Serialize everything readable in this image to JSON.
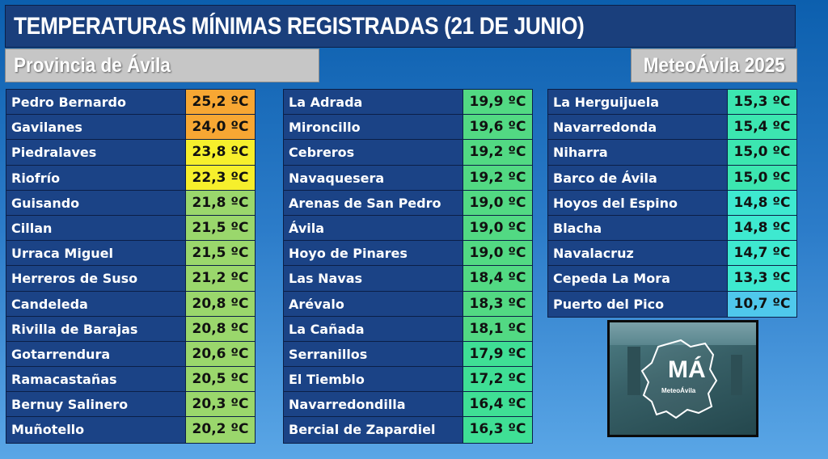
{
  "header": {
    "title": "TEMPERATURAS MÍNIMAS REGISTRADAS (21 DE JUNIO)",
    "province": "Provincia de Ávila",
    "brand": "MeteoÁvila 2025"
  },
  "columns": [
    {
      "rows": [
        {
          "name": "Pedro Bernardo",
          "temp": "25,2 ºC",
          "color": "#f7a733"
        },
        {
          "name": "Gavilanes",
          "temp": "24,0 ºC",
          "color": "#f7a733"
        },
        {
          "name": "Piedralaves",
          "temp": "23,8 ºC",
          "color": "#f6ef2c"
        },
        {
          "name": "Riofrío",
          "temp": "22,3 ºC",
          "color": "#f6ef2c"
        },
        {
          "name": "Guisando",
          "temp": "21,8 ºC",
          "color": "#9ad76c"
        },
        {
          "name": "Cillan",
          "temp": "21,5 ºC",
          "color": "#9ad76c"
        },
        {
          "name": "Urraca Miguel",
          "temp": "21,5 ºC",
          "color": "#9ad76c"
        },
        {
          "name": "Herreros de Suso",
          "temp": "21,2 ºC",
          "color": "#9ad76c"
        },
        {
          "name": "Candeleda",
          "temp": "20,8 ºC",
          "color": "#9ad76c"
        },
        {
          "name": "Rivilla de Barajas",
          "temp": "20,8 ºC",
          "color": "#9ad76c"
        },
        {
          "name": "Gotarrendura",
          "temp": "20,6 ºC",
          "color": "#9ad76c"
        },
        {
          "name": "Ramacastañas",
          "temp": "20,5 ºC",
          "color": "#9ad76c"
        },
        {
          "name": "Bernuy Salinero",
          "temp": "20,3 ºC",
          "color": "#9ad76c"
        },
        {
          "name": "Muñotello",
          "temp": "20,2 ºC",
          "color": "#9ad76c"
        }
      ]
    },
    {
      "rows": [
        {
          "name": "La Adrada",
          "temp": "19,9 ºC",
          "color": "#52d983"
        },
        {
          "name": "Mironcillo",
          "temp": "19,6 ºC",
          "color": "#52d983"
        },
        {
          "name": "Cebreros",
          "temp": "19,2 ºC",
          "color": "#52d983"
        },
        {
          "name": "Navaquesera",
          "temp": "19,2 ºC",
          "color": "#52d983"
        },
        {
          "name": "Arenas de San Pedro",
          "temp": "19,0 ºC",
          "color": "#52d983"
        },
        {
          "name": "Ávila",
          "temp": "19,0 ºC",
          "color": "#52d983"
        },
        {
          "name": "Hoyo de Pinares",
          "temp": "19,0 ºC",
          "color": "#52d983"
        },
        {
          "name": "Las Navas",
          "temp": "18,4 ºC",
          "color": "#52d983"
        },
        {
          "name": "Arévalo",
          "temp": "18,3 ºC",
          "color": "#52d983"
        },
        {
          "name": "La Cañada",
          "temp": "18,1 ºC",
          "color": "#52d983"
        },
        {
          "name": "Serranillos",
          "temp": "17,9 ºC",
          "color": "#3fdf95"
        },
        {
          "name": "El Tiemblo",
          "temp": "17,2 ºC",
          "color": "#3fdf95"
        },
        {
          "name": "Navarredondilla",
          "temp": "16,4 ºC",
          "color": "#3fdf95"
        },
        {
          "name": "Bercial de Zapardiel",
          "temp": "16,3 ºC",
          "color": "#3fdf95"
        }
      ]
    },
    {
      "rows": [
        {
          "name": "La Herguijuela",
          "temp": "15,3 ºC",
          "color": "#3ce6b0"
        },
        {
          "name": "Navarredonda",
          "temp": "15,4 ºC",
          "color": "#3ce6b0"
        },
        {
          "name": "Niharra",
          "temp": "15,0 ºC",
          "color": "#3ce6b0"
        },
        {
          "name": "Barco de Ávila",
          "temp": "15,0 ºC",
          "color": "#3ce6b0"
        },
        {
          "name": "Hoyos del Espino",
          "temp": "14,8 ºC",
          "color": "#3ee9d0"
        },
        {
          "name": "Blacha",
          "temp": "14,8 ºC",
          "color": "#3ee9d0"
        },
        {
          "name": "Navalacruz",
          "temp": "14,7 ºC",
          "color": "#3ee9d0"
        },
        {
          "name": "Cepeda La Mora",
          "temp": "13,3 ºC",
          "color": "#3ee9d0"
        },
        {
          "name": "Puerto del Pico",
          "temp": "10,7 ºC",
          "color": "#4fc8ec"
        }
      ]
    }
  ],
  "logo": {
    "mark": "MÁ",
    "name": "MeteoÁvila"
  }
}
